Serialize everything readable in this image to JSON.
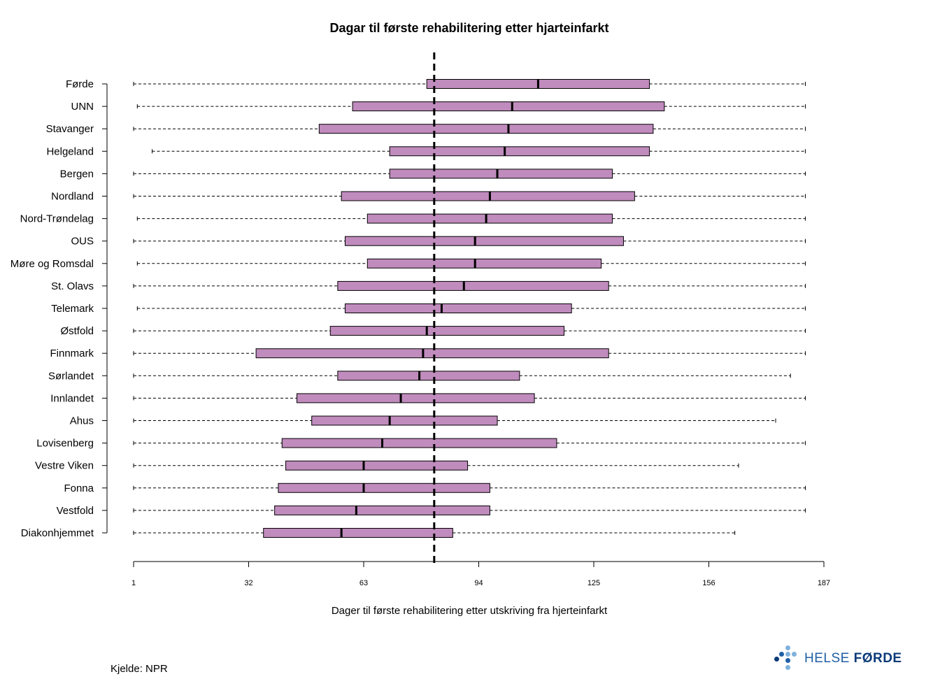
{
  "chart_data": {
    "type": "boxplot",
    "title": "Dagar til første rehabilitering  etter hjarteinfarkt",
    "xlabel": "Dager til første rehabilitering etter utskriving fra hjerteinfarkt",
    "ylabel": "",
    "xlim": [
      1,
      187
    ],
    "xticks": [
      1,
      32,
      63,
      94,
      125,
      156,
      187
    ],
    "reference_line": 82,
    "grid": false,
    "box_color": "#c08bbd",
    "categories": [
      "Førde",
      "UNN",
      "Stavanger",
      "Helgeland",
      "Bergen",
      "Nordland",
      "Nord-Trøndelag",
      "OUS",
      "Møre og Romsdal",
      "St. Olavs",
      "Telemark",
      "Østfold",
      "Finnmark",
      "Sørlandet",
      "Innlandet",
      "Ahus",
      "Lovisenberg",
      "Vestre Viken",
      "Fonna",
      "Vestfold",
      "Diakonhjemmet"
    ],
    "boxes": [
      {
        "min": 1,
        "q1": 80,
        "median": 110,
        "q3": 140,
        "max": 182
      },
      {
        "min": 2,
        "q1": 60,
        "median": 103,
        "q3": 144,
        "max": 182
      },
      {
        "min": 1,
        "q1": 51,
        "median": 102,
        "q3": 141,
        "max": 182
      },
      {
        "min": 6,
        "q1": 70,
        "median": 101,
        "q3": 140,
        "max": 182
      },
      {
        "min": 1,
        "q1": 70,
        "median": 99,
        "q3": 130,
        "max": 182
      },
      {
        "min": 1,
        "q1": 57,
        "median": 97,
        "q3": 136,
        "max": 182
      },
      {
        "min": 2,
        "q1": 64,
        "median": 96,
        "q3": 130,
        "max": 182
      },
      {
        "min": 1,
        "q1": 58,
        "median": 93,
        "q3": 133,
        "max": 182
      },
      {
        "min": 2,
        "q1": 64,
        "median": 93,
        "q3": 127,
        "max": 182
      },
      {
        "min": 1,
        "q1": 56,
        "median": 90,
        "q3": 129,
        "max": 182
      },
      {
        "min": 2,
        "q1": 58,
        "median": 84,
        "q3": 119,
        "max": 182
      },
      {
        "min": 1,
        "q1": 54,
        "median": 80,
        "q3": 117,
        "max": 182
      },
      {
        "min": 1,
        "q1": 34,
        "median": 79,
        "q3": 129,
        "max": 182
      },
      {
        "min": 1,
        "q1": 56,
        "median": 78,
        "q3": 105,
        "max": 178
      },
      {
        "min": 1,
        "q1": 45,
        "median": 73,
        "q3": 109,
        "max": 182
      },
      {
        "min": 1,
        "q1": 49,
        "median": 70,
        "q3": 99,
        "max": 174
      },
      {
        "min": 1,
        "q1": 41,
        "median": 68,
        "q3": 115,
        "max": 182
      },
      {
        "min": 1,
        "q1": 42,
        "median": 63,
        "q3": 91,
        "max": 164
      },
      {
        "min": 1,
        "q1": 40,
        "median": 63,
        "q3": 97,
        "max": 182
      },
      {
        "min": 1,
        "q1": 39,
        "median": 61,
        "q3": 97,
        "max": 182
      },
      {
        "min": 1,
        "q1": 36,
        "median": 57,
        "q3": 87,
        "max": 163
      }
    ]
  },
  "source": "Kjelde: NPR",
  "logo": {
    "text_light": "HELSE ",
    "text_bold": "FØRDE",
    "colors": [
      "#0a3a78",
      "#1f5fa6",
      "#7fb2dd"
    ]
  }
}
